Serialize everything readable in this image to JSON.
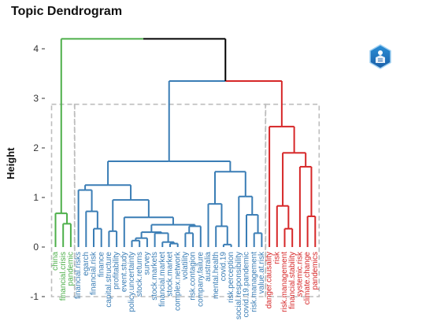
{
  "chart_data": {
    "type": "dendrogram",
    "title": "Topic Dendrogram",
    "ylabel": "Height",
    "xlabel": "",
    "ylim": [
      -1,
      4.2
    ],
    "yticks": [
      -1,
      0,
      1,
      2,
      3,
      4
    ],
    "grid": false,
    "leaves": [
      "china",
      "financial.crisis",
      "pandemic",
      "financial.risks",
      "egarch",
      "financial.risk",
      "finance",
      "capital.structure",
      "profitability",
      "event.study",
      "policy.uncertainty",
      "stock.returns",
      "survey",
      "stock.markets",
      "financial.market",
      "stock.market",
      "complex.network",
      "volatility",
      "risk.contagion",
      "company.failure",
      "australia",
      "mental.health",
      "covid.19",
      "risk.perception",
      "social.responsibility",
      "covid.19.pandemic",
      "risk.management",
      "value.at.risk",
      "danger.causality",
      "risk",
      "risk.management",
      "financial.stability",
      "systemic.risk",
      "climate.change",
      "pandemics"
    ],
    "clusters": [
      {
        "color": "#4daf4a",
        "leaves_from": 0,
        "leaves_to": 2
      },
      {
        "color": "#3a7db5",
        "leaves_from": 3,
        "leaves_to": 27
      },
      {
        "color": "#d62728",
        "leaves_from": 28,
        "leaves_to": 34
      }
    ],
    "merges": [
      {
        "id": "n1",
        "a": "L1",
        "b": "L2",
        "height": 0.47,
        "color": "#4daf4a"
      },
      {
        "id": "n2",
        "a": "L0",
        "b": "n1",
        "height": 0.68,
        "color": "#4daf4a"
      },
      {
        "id": "n3",
        "a": "L5",
        "b": "L6",
        "height": 0.37,
        "color": "#3a7db5"
      },
      {
        "id": "n4",
        "a": "L4",
        "b": "n3",
        "height": 0.72,
        "color": "#3a7db5"
      },
      {
        "id": "n5",
        "a": "L3",
        "b": "n4",
        "height": 1.15,
        "color": "#3a7db5"
      },
      {
        "id": "n6",
        "a": "L7",
        "b": "L8",
        "height": 0.32,
        "color": "#3a7db5"
      },
      {
        "id": "n7",
        "a": "L10",
        "b": "L11",
        "height": 0.13,
        "color": "#3a7db5"
      },
      {
        "id": "n8",
        "a": "n7",
        "b": "L12",
        "height": 0.18,
        "color": "#3a7db5"
      },
      {
        "id": "n9",
        "a": "L15",
        "b": "L16",
        "height": 0.07,
        "color": "#3a7db5"
      },
      {
        "id": "n10",
        "a": "L14",
        "b": "n9",
        "height": 0.1,
        "color": "#3a7db5"
      },
      {
        "id": "n11",
        "a": "L13",
        "b": "n10",
        "height": 0.28,
        "color": "#3a7db5"
      },
      {
        "id": "n12",
        "a": "n8",
        "b": "n11",
        "height": 0.3,
        "color": "#3a7db5"
      },
      {
        "id": "n13",
        "a": "L17",
        "b": "L18",
        "height": 0.28,
        "color": "#3a7db5"
      },
      {
        "id": "n14",
        "a": "n13",
        "b": "L19",
        "height": 0.42,
        "color": "#3a7db5"
      },
      {
        "id": "n15",
        "a": "n12",
        "b": "n14",
        "height": 0.45,
        "color": "#3a7db5"
      },
      {
        "id": "n16",
        "a": "L9",
        "b": "n15",
        "height": 0.6,
        "color": "#3a7db5"
      },
      {
        "id": "n17",
        "a": "n6",
        "b": "n16",
        "height": 0.95,
        "color": "#3a7db5"
      },
      {
        "id": "n18",
        "a": "n5",
        "b": "n17",
        "height": 1.25,
        "color": "#3a7db5"
      },
      {
        "id": "n19",
        "a": "L22",
        "b": "L23",
        "height": 0.05,
        "color": "#3a7db5"
      },
      {
        "id": "n20",
        "a": "L21",
        "b": "n19",
        "height": 0.42,
        "color": "#3a7db5"
      },
      {
        "id": "n21",
        "a": "L20",
        "b": "n20",
        "height": 0.87,
        "color": "#3a7db5"
      },
      {
        "id": "n22",
        "a": "L26",
        "b": "L27",
        "height": 0.28,
        "color": "#3a7db5"
      },
      {
        "id": "n23",
        "a": "L25",
        "b": "n22",
        "height": 0.65,
        "color": "#3a7db5"
      },
      {
        "id": "n24",
        "a": "L24",
        "b": "n23",
        "height": 1.02,
        "color": "#3a7db5"
      },
      {
        "id": "n25",
        "a": "n21",
        "b": "n24",
        "height": 1.52,
        "color": "#3a7db5"
      },
      {
        "id": "n26",
        "a": "n18",
        "b": "n25",
        "height": 1.73,
        "color": "#3a7db5"
      },
      {
        "id": "n27",
        "a": "L30",
        "b": "L31",
        "height": 0.37,
        "color": "#d62728"
      },
      {
        "id": "n28",
        "a": "L29",
        "b": "n27",
        "height": 0.83,
        "color": "#d62728"
      },
      {
        "id": "n29",
        "a": "L33",
        "b": "L34",
        "height": 0.62,
        "color": "#d62728"
      },
      {
        "id": "n30",
        "a": "L32",
        "b": "n29",
        "height": 1.62,
        "color": "#d62728"
      },
      {
        "id": "n31",
        "a": "n28",
        "b": "n30",
        "height": 1.9,
        "color": "#d62728"
      },
      {
        "id": "n32",
        "a": "L28",
        "b": "n31",
        "height": 2.43,
        "color": "#d62728"
      },
      {
        "id": "n33",
        "a": "n26",
        "b": "n32",
        "height": 3.35,
        "color": "#3a7db5",
        "left_color": "#3a7db5",
        "right_color": "#d62728"
      },
      {
        "id": "n34",
        "a": "n2",
        "b": "n33",
        "height": 4.2,
        "color": "#000000",
        "left_color": "#4daf4a",
        "right_color": "#000000"
      }
    ],
    "rect_color": "#bdbdbd"
  }
}
